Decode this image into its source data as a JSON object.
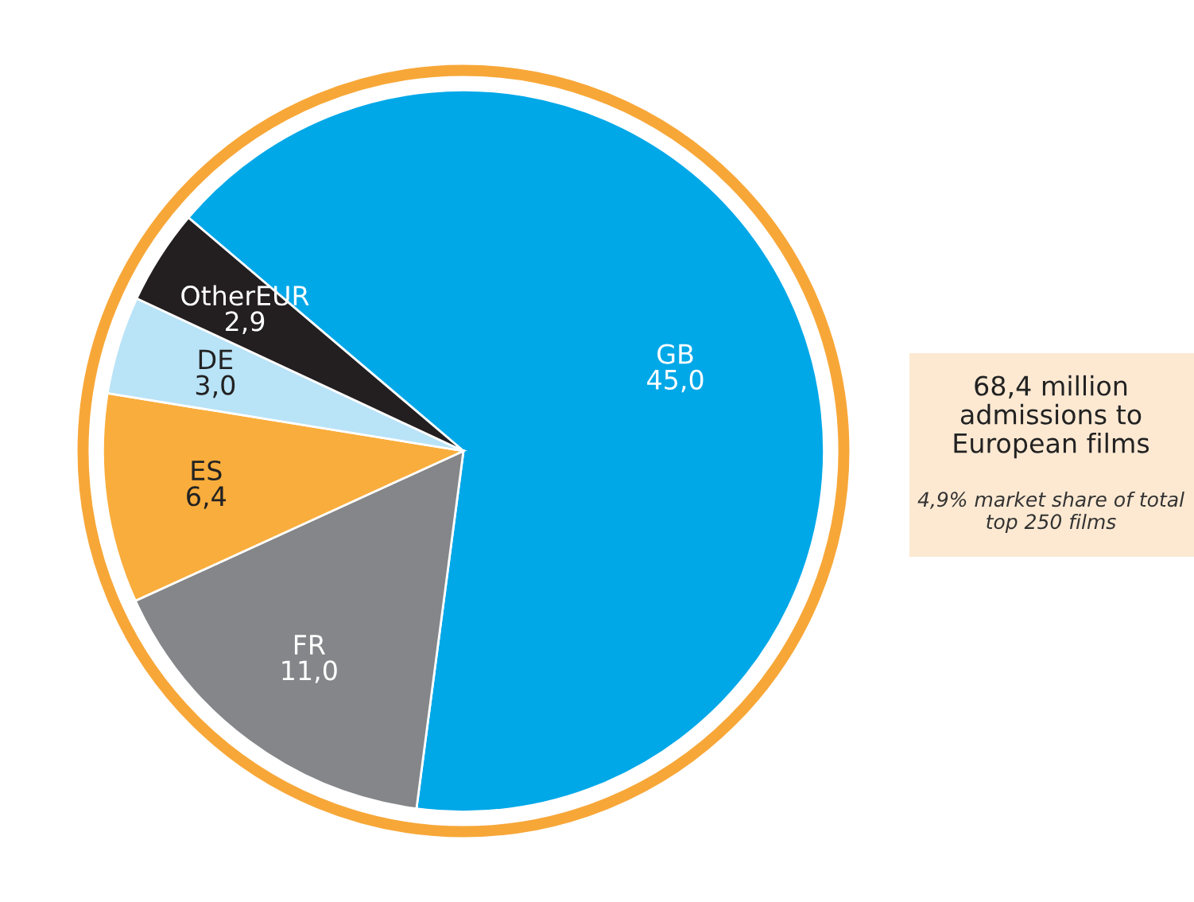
{
  "chart_data": {
    "type": "pie",
    "categories": [
      "GB",
      "FR",
      "ES",
      "DE",
      "OtherEUR"
    ],
    "values": [
      45.0,
      11.0,
      6.4,
      3.0,
      2.9
    ],
    "value_labels": [
      "45,0",
      "11,0",
      "6,4",
      "3,0",
      "2,9"
    ],
    "colors": [
      "#00a8e8",
      "#848689",
      "#f9ad3c",
      "#b9e3f7",
      "#231f20"
    ],
    "annotations": [
      "68,4 million admissions to European films",
      "4,9% market share of total top 250 films"
    ],
    "legend": false
  }
}
